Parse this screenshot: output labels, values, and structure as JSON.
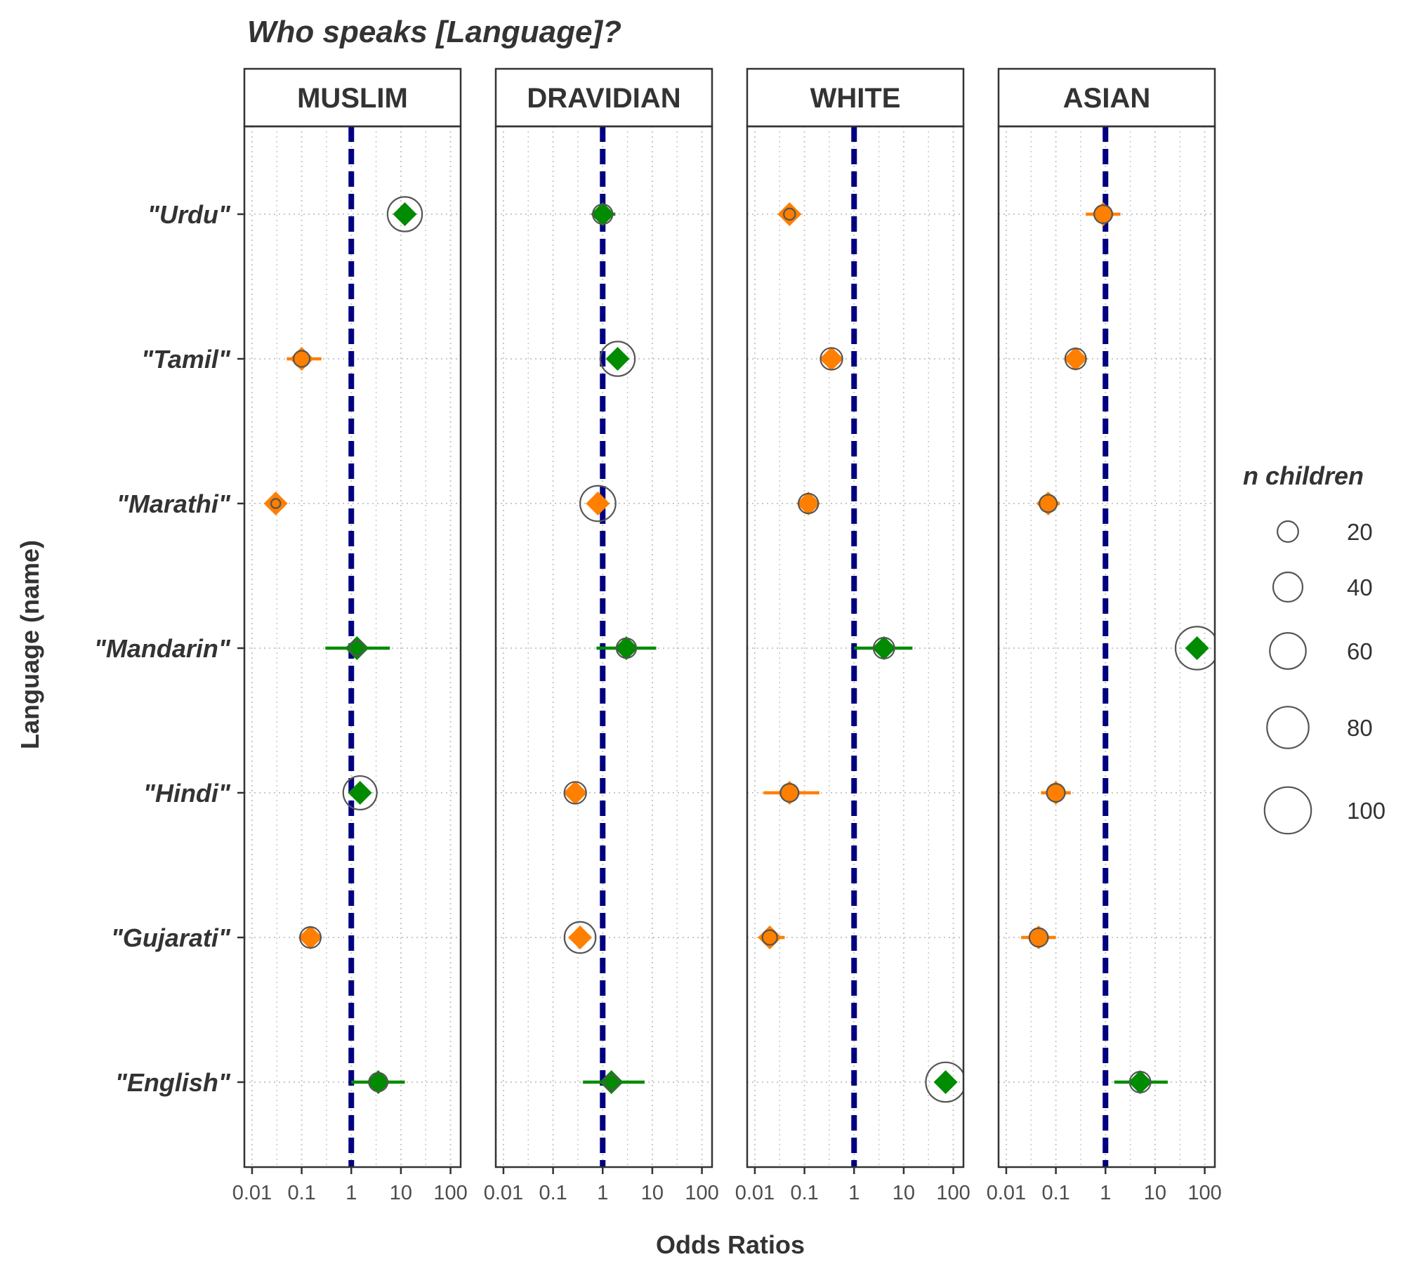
{
  "chart_data": {
    "type": "scatter",
    "title": "Who speaks [Language]?",
    "xlabel": "Odds Ratios",
    "ylabel": "Language (name)",
    "x_scale": "log10",
    "xlim": [
      0.007,
      160
    ],
    "x_ticks": [
      0.01,
      0.1,
      1,
      10,
      100
    ],
    "x_tick_labels": [
      "0.01",
      "0.1",
      "1",
      "10",
      "100"
    ],
    "reference_line": 1,
    "grid": true,
    "categories": [
      "\"Urdu\"",
      "\"Tamil\"",
      "\"Marathi\"",
      "\"Mandarin\"",
      "\"Hindi\"",
      "\"Gujarati\"",
      "\"English\""
    ],
    "panels": [
      {
        "name": "MUSLIM",
        "points": [
          {
            "or": 12,
            "lo": null,
            "hi": null,
            "n": 55,
            "dir": "up"
          },
          {
            "or": 0.1,
            "lo": 0.05,
            "hi": 0.25,
            "n": 12,
            "dir": "down"
          },
          {
            "or": 0.03,
            "lo": null,
            "hi": null,
            "n": 4,
            "dir": "down"
          },
          {
            "or": 1.3,
            "lo": 0.3,
            "hi": 6,
            "n": 10,
            "dir": "up"
          },
          {
            "or": 1.5,
            "lo": null,
            "hi": null,
            "n": 52,
            "dir": "up"
          },
          {
            "or": 0.15,
            "lo": null,
            "hi": null,
            "n": 20,
            "dir": "down"
          },
          {
            "or": 3.5,
            "lo": 1,
            "hi": 12,
            "n": 16,
            "dir": "up"
          }
        ]
      },
      {
        "name": "DRAVIDIAN",
        "points": [
          {
            "or": 1.0,
            "lo": null,
            "hi": 1.8,
            "n": 18,
            "dir": "up"
          },
          {
            "or": 2,
            "lo": null,
            "hi": null,
            "n": 55,
            "dir": "up"
          },
          {
            "or": 0.8,
            "lo": null,
            "hi": null,
            "n": 58,
            "dir": "down"
          },
          {
            "or": 3,
            "lo": 0.75,
            "hi": 12,
            "n": 18,
            "dir": "up"
          },
          {
            "or": 0.28,
            "lo": null,
            "hi": null,
            "n": 22,
            "dir": "down"
          },
          {
            "or": 0.35,
            "lo": null,
            "hi": null,
            "n": 45,
            "dir": "down"
          },
          {
            "or": 1.5,
            "lo": 0.4,
            "hi": 7,
            "n": 10,
            "dir": "up"
          }
        ]
      },
      {
        "name": "WHITE",
        "points": [
          {
            "or": 0.05,
            "lo": null,
            "hi": null,
            "n": 6,
            "dir": "down"
          },
          {
            "or": 0.35,
            "lo": null,
            "hi": null,
            "n": 22,
            "dir": "down"
          },
          {
            "or": 0.12,
            "lo": null,
            "hi": null,
            "n": 18,
            "dir": "down"
          },
          {
            "or": 4,
            "lo": 1,
            "hi": 15,
            "n": 20,
            "dir": "up"
          },
          {
            "or": 0.05,
            "lo": 0.015,
            "hi": 0.2,
            "n": 15,
            "dir": "down"
          },
          {
            "or": 0.02,
            "lo": null,
            "hi": 0.04,
            "n": 10,
            "dir": "down"
          },
          {
            "or": 70,
            "lo": null,
            "hi": null,
            "n": 72,
            "dir": "up"
          }
        ]
      },
      {
        "name": "ASIAN",
        "points": [
          {
            "or": 0.9,
            "lo": 0.4,
            "hi": 2,
            "n": 15,
            "dir": "down"
          },
          {
            "or": 0.25,
            "lo": null,
            "hi": null,
            "n": 20,
            "dir": "down"
          },
          {
            "or": 0.07,
            "lo": 0.045,
            "hi": 0.12,
            "n": 14,
            "dir": "down"
          },
          {
            "or": 70,
            "lo": null,
            "hi": null,
            "n": 85,
            "dir": "up"
          },
          {
            "or": 0.1,
            "lo": 0.05,
            "hi": 0.2,
            "n": 15,
            "dir": "down"
          },
          {
            "or": 0.045,
            "lo": 0.02,
            "hi": 0.1,
            "n": 16,
            "dir": "down"
          },
          {
            "or": 5,
            "lo": 1.5,
            "hi": 18,
            "n": 20,
            "dir": "up"
          }
        ]
      }
    ],
    "colors": {
      "up": "#008B00",
      "down": "#FF7F00",
      "reference": "#000080",
      "grid": "#C8C8C8",
      "circle": "#555555"
    },
    "legend": {
      "title": "n children",
      "placement": "right",
      "entries": [
        {
          "n": 20,
          "label": "20"
        },
        {
          "n": 40,
          "label": "40"
        },
        {
          "n": 60,
          "label": "60"
        },
        {
          "n": 80,
          "label": "80"
        },
        {
          "n": 100,
          "label": "100"
        }
      ]
    }
  }
}
